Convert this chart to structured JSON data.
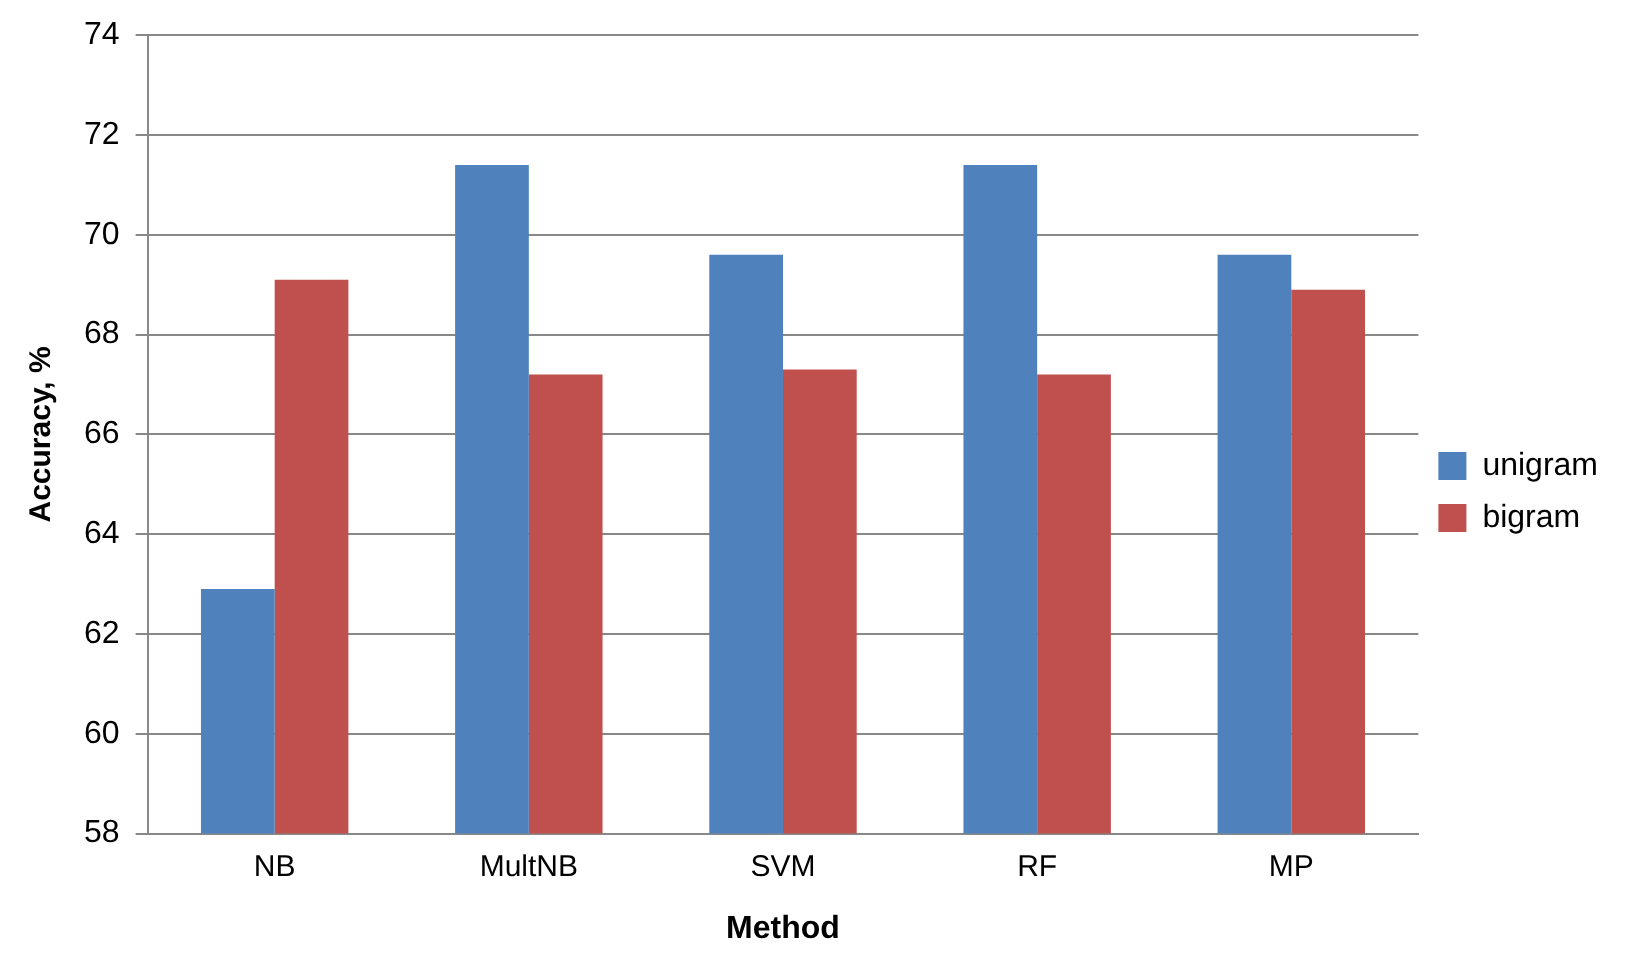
{
  "chart_data": {
    "type": "bar",
    "xlabel": "Method",
    "ylabel": "Accuracy, %",
    "categories": [
      "NB",
      "MultNB",
      "SVM",
      "RF",
      "MP"
    ],
    "series": [
      {
        "name": "unigram",
        "color": "#4f81bd",
        "values": [
          62.9,
          71.4,
          69.6,
          71.4,
          69.6
        ]
      },
      {
        "name": "bigram",
        "color": "#c0504d",
        "values": [
          69.1,
          67.2,
          67.3,
          67.2,
          68.9
        ]
      }
    ],
    "ylim": [
      58,
      74
    ],
    "yticks": [
      58,
      60,
      62,
      64,
      66,
      68,
      70,
      72,
      74
    ],
    "grid": "y",
    "legend": "right"
  }
}
